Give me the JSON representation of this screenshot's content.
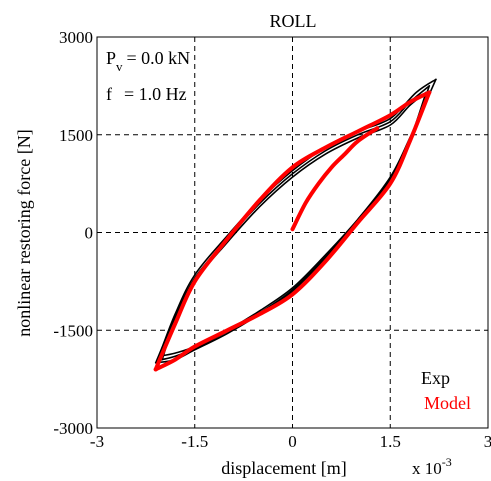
{
  "chart_data": {
    "type": "line",
    "title": "ROLL",
    "xlabel": "displacement [m]",
    "ylabel": "nonlinear restoring force [N]",
    "x_scale_label": "x 10",
    "x_scale_exponent": "-3",
    "x_scale_factor": 0.001,
    "xlim": [
      -3,
      3
    ],
    "ylim": [
      -3000,
      3000
    ],
    "xticks": [
      -3,
      -1.5,
      0,
      1.5,
      3
    ],
    "xtick_labels": [
      "-3",
      "-1.5",
      "0",
      "1.5",
      "3"
    ],
    "yticks": [
      -3000,
      -1500,
      0,
      1500,
      3000
    ],
    "ytick_labels": [
      "-3000",
      "-1500",
      "0",
      "1500",
      "3000"
    ],
    "grid": true,
    "grid_style": "dashed",
    "legend_position": "bottom-right",
    "annotations": {
      "pv": {
        "prefix": "P",
        "subscript": "v",
        "value": "=  0.0 kN"
      },
      "f": {
        "prefix": "f",
        "value": "=  1.0 Hz"
      }
    },
    "series": [
      {
        "name": "Exp",
        "color": "#000000",
        "loops": [
          {
            "upper_x": [
              2.1,
              1.8,
              1.5,
              1.0,
              0.5,
              0.0,
              -0.5,
              -1.0,
              -1.5,
              -1.8,
              -2.1
            ],
            "upper_y": [
              2250,
              2000,
              1700,
              1500,
              1250,
              900,
              450,
              -100,
              -700,
              -1300,
              -2000
            ],
            "lower_x": [
              -2.1,
              -1.8,
              -1.5,
              -1.0,
              -0.5,
              0.0,
              0.5,
              1.0,
              1.5,
              1.8,
              2.1
            ],
            "lower_y": [
              -2000,
              -1950,
              -1800,
              -1550,
              -1250,
              -900,
              -400,
              150,
              800,
              1400,
              2250
            ]
          },
          {
            "upper_x": [
              2.2,
              1.9,
              1.5,
              1.0,
              0.5,
              0.0,
              -0.5,
              -1.0,
              -1.5,
              -1.8,
              -2.05
            ],
            "upper_y": [
              2350,
              2150,
              1750,
              1550,
              1300,
              950,
              500,
              -50,
              -650,
              -1250,
              -1900
            ],
            "lower_x": [
              -2.05,
              -1.8,
              -1.5,
              -1.0,
              -0.5,
              0.0,
              0.5,
              1.0,
              1.5,
              1.8,
              2.2
            ],
            "lower_y": [
              -1900,
              -1850,
              -1750,
              -1500,
              -1200,
              -850,
              -350,
              200,
              850,
              1450,
              2350
            ]
          },
          {
            "upper_x": [
              2.05,
              1.8,
              1.5,
              1.0,
              0.5,
              0.0,
              -0.5,
              -1.0,
              -1.5,
              -1.8,
              -2.0
            ],
            "upper_y": [
              2150,
              1950,
              1650,
              1450,
              1200,
              850,
              400,
              -150,
              -750,
              -1350,
              -1950
            ],
            "lower_x": [
              -2.0,
              -1.8,
              -1.5,
              -1.0,
              -0.5,
              0.0,
              0.5,
              1.0,
              1.5,
              1.8,
              2.05
            ],
            "lower_y": [
              -1950,
              -1900,
              -1780,
              -1520,
              -1230,
              -880,
              -380,
              170,
              820,
              1420,
              2150
            ]
          }
        ]
      },
      {
        "name": "Model",
        "color": "#ff0000",
        "loops": [
          {
            "upper_x": [
              2.1,
              1.8,
              1.5,
              1.0,
              0.5,
              0.0,
              -0.5,
              -1.0,
              -1.5,
              -1.8,
              -2.1
            ],
            "upper_y": [
              2150,
              2000,
              1800,
              1550,
              1300,
              1000,
              500,
              -100,
              -750,
              -1400,
              -2100
            ],
            "lower_x": [
              -2.1,
              -1.8,
              -1.5,
              -1.0,
              -0.5,
              0.0,
              0.5,
              1.0,
              1.5,
              1.8,
              2.1
            ],
            "lower_y": [
              -2100,
              -1950,
              -1750,
              -1500,
              -1250,
              -950,
              -450,
              150,
              750,
              1400,
              2150
            ]
          }
        ],
        "initial_x": [
          0.0,
          0.2,
          0.4,
          0.6,
          0.8,
          1.0,
          1.3
        ],
        "initial_y": [
          50,
          450,
          750,
          1000,
          1200,
          1400,
          1600
        ]
      }
    ]
  }
}
